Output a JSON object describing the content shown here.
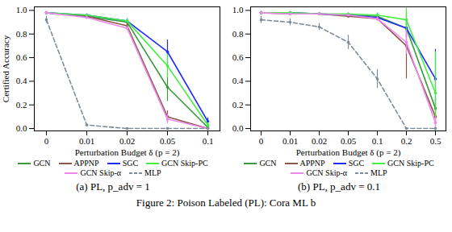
{
  "chart_data": [
    {
      "type": "line",
      "title": "(a) PL, p_adv = 1",
      "x_label": "Perturbation Budget δ (p = 2)",
      "y_label": "Certified Accuracy",
      "categories": [
        "0",
        "0.01",
        "0.02",
        "0.05",
        "0.1"
      ],
      "ylim": [
        -0.02,
        1.03
      ],
      "yticks": [
        {
          "value": 0,
          "label": "0.0"
        },
        {
          "value": 0.2,
          "label": "0.2"
        },
        {
          "value": 0.4,
          "label": "0.4"
        },
        {
          "value": 0.6,
          "label": "0.6"
        },
        {
          "value": 0.8,
          "label": "0.8"
        },
        {
          "value": 1,
          "label": "1.0"
        }
      ],
      "grid": false,
      "legend": "bottom",
      "series": [
        {
          "name": "GCN",
          "color": "#3a9a3a",
          "line_style": "solid",
          "values": [
            0.98,
            0.95,
            0.9,
            0.35,
            0.01
          ],
          "errors": [
            0.01,
            0.01,
            0.02,
            0.12,
            0.01
          ]
        },
        {
          "name": "APPNP",
          "color": "#8c564b",
          "line_style": "solid",
          "values": [
            0.98,
            0.95,
            0.87,
            0.1,
            0.0
          ],
          "errors": [
            0.01,
            0.01,
            0.02,
            0.05,
            0
          ]
        },
        {
          "name": "SGC",
          "color": "#1f2bff",
          "line_style": "solid",
          "values": [
            0.98,
            0.96,
            0.91,
            0.65,
            0.06
          ],
          "errors": [
            0.01,
            0.01,
            0.02,
            0.1,
            0.03
          ]
        },
        {
          "name": "GCN Skip-PC",
          "color": "#44ee44",
          "line_style": "solid",
          "values": [
            0.98,
            0.96,
            0.91,
            0.53,
            0.03
          ],
          "errors": [
            0.01,
            0.01,
            0.02,
            0.1,
            0.02
          ]
        },
        {
          "name": "GCN Skip-α",
          "color": "#ee88ee",
          "line_style": "solid",
          "values": [
            0.98,
            0.94,
            0.85,
            0.08,
            0.0
          ],
          "errors": [
            0.01,
            0.01,
            0.02,
            0.04,
            0
          ]
        },
        {
          "name": "MLP",
          "color": "#7f8c9a",
          "line_style": "dashed",
          "values": [
            0.92,
            0.03,
            0.0,
            0.0,
            0.0
          ],
          "errors": [
            0.03,
            0.01,
            0,
            0,
            0
          ]
        }
      ]
    },
    {
      "type": "line",
      "title": "(b) PL, p_adv = 0.1",
      "x_label": "Perturbation Budget δ (p = 2)",
      "categories": [
        "0",
        "0.01",
        "0.02",
        "0.05",
        "0.1",
        "0.2",
        "0.5"
      ],
      "ylim": [
        -0.02,
        1.03
      ],
      "yticks": [
        {
          "value": 0,
          "label": "0.0"
        },
        {
          "value": 0.2,
          "label": "0.2"
        },
        {
          "value": 0.4,
          "label": "0.4"
        },
        {
          "value": 0.6,
          "label": "0.6"
        },
        {
          "value": 0.8,
          "label": "0.8"
        },
        {
          "value": 1,
          "label": "1.0"
        }
      ],
      "grid": false,
      "legend": "bottom",
      "series": [
        {
          "name": "GCN",
          "color": "#3a9a3a",
          "line_style": "solid",
          "values": [
            0.98,
            0.98,
            0.97,
            0.96,
            0.95,
            0.85,
            0.17
          ],
          "errors": [
            0.01,
            0.01,
            0.01,
            0.01,
            0.02,
            0.08,
            0.1
          ]
        },
        {
          "name": "APPNP",
          "color": "#8c564b",
          "line_style": "solid",
          "values": [
            0.98,
            0.97,
            0.97,
            0.95,
            0.93,
            0.7,
            0.1
          ],
          "errors": [
            0.01,
            0.01,
            0.01,
            0.01,
            0.02,
            0.28,
            0.08
          ]
        },
        {
          "name": "SGC",
          "color": "#1f2bff",
          "line_style": "solid",
          "values": [
            0.98,
            0.98,
            0.97,
            0.96,
            0.94,
            0.85,
            0.42
          ],
          "errors": [
            0.01,
            0.01,
            0.01,
            0.01,
            0.02,
            0.08,
            0.25
          ]
        },
        {
          "name": "GCN Skip-PC",
          "color": "#44ee44",
          "line_style": "solid",
          "values": [
            0.98,
            0.98,
            0.97,
            0.97,
            0.96,
            0.92,
            0.3
          ],
          "errors": [
            0.01,
            0.01,
            0.01,
            0.01,
            0.02,
            0.1,
            0.35
          ]
        },
        {
          "name": "GCN Skip-α",
          "color": "#ee88ee",
          "line_style": "solid",
          "values": [
            0.98,
            0.97,
            0.97,
            0.96,
            0.93,
            0.73,
            0.05
          ],
          "errors": [
            0.01,
            0.01,
            0.01,
            0.01,
            0.02,
            0.1,
            0.05
          ]
        },
        {
          "name": "MLP",
          "color": "#7f8c9a",
          "line_style": "dashed",
          "values": [
            0.92,
            0.9,
            0.86,
            0.73,
            0.42,
            0.0,
            0.0
          ],
          "errors": [
            0.03,
            0.03,
            0.03,
            0.06,
            0.08,
            0,
            0
          ]
        }
      ]
    }
  ],
  "caption": "Figure 2: Poison Labeled (PL): Cora ML b"
}
